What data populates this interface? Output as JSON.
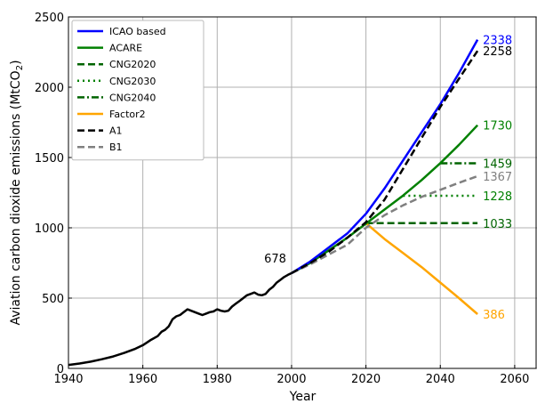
{
  "chart_data": {
    "type": "line",
    "title": "",
    "xlabel": "Year",
    "ylabel": "Aviation carbon dioxide emissions (MtCO",
    "ylabel_sub": "2",
    "ylabel_end": ")",
    "xlim": [
      1940,
      2066
    ],
    "ylim": [
      0,
      2500
    ],
    "x_ticks": [
      1940,
      1960,
      1980,
      2000,
      2020,
      2040,
      2060
    ],
    "y_ticks": [
      0,
      500,
      1000,
      1500,
      2000,
      2500
    ],
    "grid": true,
    "legend_position": "top-left",
    "legend": [
      {
        "label": "ICAO based",
        "color": "#0000ff",
        "dash": "solid"
      },
      {
        "label": "ACARE",
        "color": "#008000",
        "dash": "solid"
      },
      {
        "label": "CNG2020",
        "color": "#006400",
        "dash": "dashed"
      },
      {
        "label": "CNG2030",
        "color": "#008000",
        "dash": "dotted"
      },
      {
        "label": "CNG2040",
        "color": "#006400",
        "dash": "dashdot"
      },
      {
        "label": "Factor2",
        "color": "#ffa500",
        "dash": "solid"
      },
      {
        "label": "A1",
        "color": "#000000",
        "dash": "dashed"
      },
      {
        "label": "B1",
        "color": "#808080",
        "dash": "dashed"
      }
    ],
    "history": {
      "color": "#000000",
      "x": [
        1940,
        1943,
        1946,
        1949,
        1952,
        1955,
        1958,
        1960,
        1962,
        1964,
        1965,
        1966,
        1967,
        1968,
        1969,
        1970,
        1971,
        1972,
        1973,
        1974,
        1975,
        1976,
        1977,
        1978,
        1979,
        1980,
        1981,
        1982,
        1983,
        1984,
        1985,
        1986,
        1987,
        1988,
        1989,
        1990,
        1991,
        1992,
        1993,
        1994,
        1995,
        1996,
        1997,
        1998,
        1999,
        2000
      ],
      "y": [
        25,
        35,
        48,
        65,
        85,
        110,
        140,
        165,
        200,
        230,
        260,
        275,
        300,
        350,
        370,
        380,
        400,
        420,
        410,
        400,
        390,
        380,
        390,
        400,
        405,
        420,
        410,
        405,
        410,
        440,
        460,
        480,
        500,
        520,
        530,
        540,
        525,
        520,
        530,
        560,
        580,
        610,
        630,
        650,
        665,
        678
      ]
    },
    "series": [
      {
        "name": "ICAO based",
        "color": "#0000ff",
        "dash": "solid",
        "x": [
          2000,
          2005,
          2010,
          2015,
          2020,
          2025,
          2030,
          2035,
          2040,
          2045,
          2050
        ],
        "y": [
          678,
          760,
          860,
          960,
          1100,
          1280,
          1480,
          1680,
          1880,
          2100,
          2338
        ]
      },
      {
        "name": "ACARE",
        "color": "#008000",
        "dash": "solid",
        "x": [
          2000,
          2005,
          2010,
          2015,
          2020,
          2025,
          2030,
          2035,
          2040,
          2045,
          2050
        ],
        "y": [
          678,
          750,
          840,
          930,
          1030,
          1130,
          1230,
          1340,
          1460,
          1590,
          1730
        ]
      },
      {
        "name": "CNG2020",
        "color": "#006400",
        "dash": "dashed",
        "x": [
          2020,
          2050
        ],
        "y": [
          1033,
          1033
        ]
      },
      {
        "name": "CNG2030",
        "color": "#008000",
        "dash": "dotted",
        "x": [
          2030,
          2050
        ],
        "y": [
          1228,
          1228
        ]
      },
      {
        "name": "CNG2040",
        "color": "#006400",
        "dash": "dashdot",
        "x": [
          2040,
          2050
        ],
        "y": [
          1459,
          1459
        ]
      },
      {
        "name": "Factor2",
        "color": "#ffa500",
        "dash": "solid",
        "x": [
          2020,
          2025,
          2030,
          2035,
          2040,
          2045,
          2050
        ],
        "y": [
          1033,
          920,
          820,
          720,
          610,
          500,
          386
        ]
      },
      {
        "name": "A1",
        "color": "#000000",
        "dash": "dashed",
        "x": [
          2000,
          2005,
          2010,
          2015,
          2020,
          2025,
          2030,
          2035,
          2040,
          2045,
          2050
        ],
        "y": [
          678,
          750,
          830,
          930,
          1040,
          1200,
          1420,
          1640,
          1860,
          2060,
          2258
        ]
      },
      {
        "name": "B1",
        "color": "#808080",
        "dash": "dashed",
        "x": [
          2000,
          2005,
          2010,
          2015,
          2020,
          2025,
          2030,
          2035,
          2040,
          2045,
          2050
        ],
        "y": [
          678,
          740,
          810,
          880,
          1000,
          1090,
          1160,
          1220,
          1270,
          1320,
          1367
        ]
      }
    ],
    "annotations": [
      {
        "text": "678",
        "x": 2000,
        "y": 678,
        "color": "#000000",
        "anchor": "left-of"
      },
      {
        "text": "2338",
        "x": 2050,
        "y": 2338,
        "color": "#0000ff",
        "anchor": "right"
      },
      {
        "text": "2258",
        "x": 2050,
        "y": 2258,
        "color": "#000000",
        "anchor": "right"
      },
      {
        "text": "1730",
        "x": 2050,
        "y": 1730,
        "color": "#008000",
        "anchor": "right"
      },
      {
        "text": "1459",
        "x": 2050,
        "y": 1459,
        "color": "#006400",
        "anchor": "right"
      },
      {
        "text": "1367",
        "x": 2050,
        "y": 1367,
        "color": "#808080",
        "anchor": "right"
      },
      {
        "text": "1228",
        "x": 2050,
        "y": 1228,
        "color": "#008000",
        "anchor": "right"
      },
      {
        "text": "1033",
        "x": 2050,
        "y": 1033,
        "color": "#006400",
        "anchor": "right"
      },
      {
        "text": "386",
        "x": 2050,
        "y": 386,
        "color": "#ffa500",
        "anchor": "right"
      }
    ]
  }
}
